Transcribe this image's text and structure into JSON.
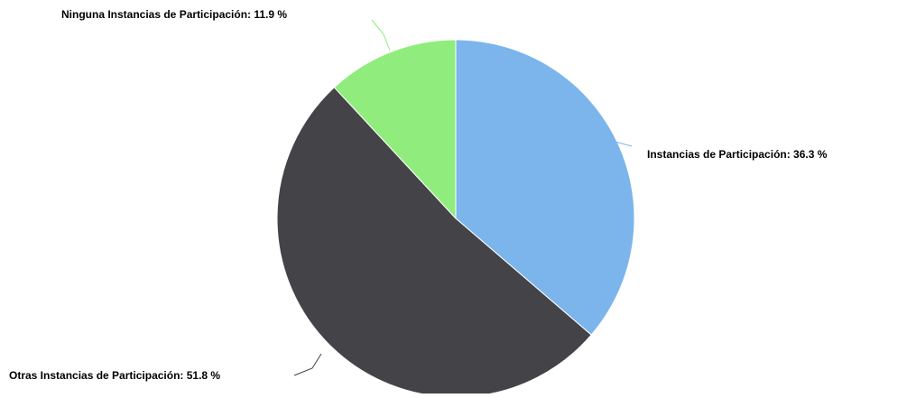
{
  "chart_data": {
    "type": "pie",
    "title": "",
    "slices": [
      {
        "label": "Instancias de Participación",
        "value": 36.3,
        "label_text": "Instancias de Participación: 36.3 %",
        "color": "#7cb5ec"
      },
      {
        "label": "Otras Instancias de Participación",
        "value": 51.8,
        "label_text": "Otras Instancias de Participación: 51.8 %",
        "color": "#434348"
      },
      {
        "label": "Ninguna Instancias de Participación",
        "value": 11.9,
        "label_text": "Ninguna Instancias de Participación: 11.9 %",
        "color": "#90ed7d"
      }
    ]
  }
}
